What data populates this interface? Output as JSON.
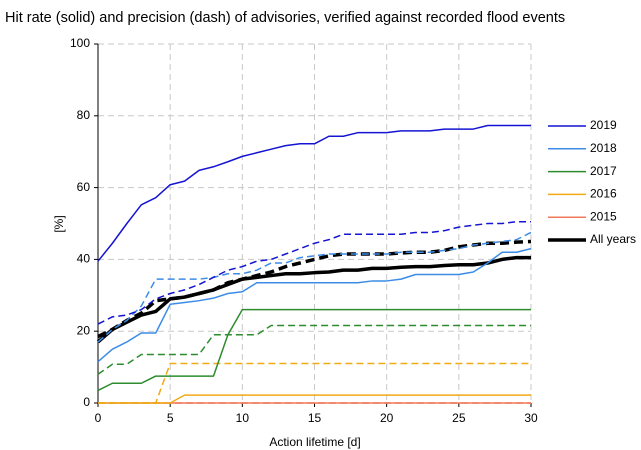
{
  "chart_data": {
    "type": "line",
    "title": "Hit rate (solid) and precision (dash) of advisories, verified against recorded flood events",
    "x_label": "Action lifetime [d]",
    "y_label": "[%]",
    "x": [
      0,
      1,
      2,
      3,
      4,
      5,
      6,
      7,
      8,
      9,
      10,
      11,
      12,
      13,
      14,
      15,
      16,
      17,
      18,
      19,
      20,
      21,
      22,
      23,
      24,
      25,
      26,
      27,
      28,
      29,
      30
    ],
    "series": [
      {
        "name": "2019",
        "color": "#1414d2",
        "values": [
          39.5,
          44.5,
          50,
          55.2,
          57.2,
          60.8,
          61.8,
          64.8,
          65.8,
          67.2,
          68.7,
          69.7,
          70.7,
          71.7,
          72.2,
          72.2,
          74.3,
          74.3,
          75.3,
          75.3,
          75.3,
          75.8,
          75.8,
          75.8,
          76.3,
          76.3,
          76.3,
          77.3,
          77.3,
          77.3,
          77.3
        ],
        "precision_values": [
          22,
          24,
          24.5,
          26,
          29,
          30.5,
          31.5,
          33,
          35,
          37,
          38,
          39.5,
          40,
          41.5,
          43,
          44.5,
          45.5,
          47,
          47,
          47,
          47,
          47,
          47.5,
          47.5,
          48,
          49,
          49.5,
          50,
          50,
          50.5,
          50.5
        ]
      },
      {
        "name": "2018",
        "color": "#3c8ce6",
        "values": [
          11.5,
          15,
          17,
          19.5,
          19.5,
          27.5,
          28,
          28.5,
          29.2,
          30.5,
          31,
          33.5,
          33.5,
          33.5,
          33.5,
          33.5,
          33.5,
          33.5,
          33.5,
          34,
          34,
          34.5,
          35.8,
          35.8,
          35.8,
          35.8,
          36.5,
          39,
          42,
          42,
          43
        ],
        "precision_values": [
          17,
          20.5,
          23,
          27,
          34.5,
          34.5,
          34.5,
          34.5,
          35,
          36,
          36,
          37,
          39,
          39,
          40.5,
          41,
          41.5,
          41.5,
          41.5,
          41.5,
          41.5,
          42,
          42,
          42,
          42.5,
          43,
          44,
          44.5,
          45,
          45.5,
          47.5
        ]
      },
      {
        "name": "2017",
        "color": "#2d8c2d",
        "values": [
          3.5,
          5.5,
          5.5,
          5.5,
          7.5,
          7.5,
          7.5,
          7.5,
          7.5,
          19,
          26,
          26,
          26,
          26,
          26,
          26,
          26,
          26,
          26,
          26,
          26,
          26,
          26,
          26,
          26,
          26,
          26,
          26,
          26,
          26,
          26
        ],
        "precision_values": [
          8,
          10.8,
          10.8,
          13.5,
          13.5,
          13.5,
          13.5,
          13.5,
          19,
          19,
          19,
          19,
          21.6,
          21.6,
          21.6,
          21.6,
          21.6,
          21.6,
          21.6,
          21.6,
          21.6,
          21.6,
          21.6,
          21.6,
          21.6,
          21.6,
          21.6,
          21.6,
          21.6,
          21.6,
          21.6
        ]
      },
      {
        "name": "2016",
        "color": "#f0aa14",
        "values": [
          0,
          0,
          0,
          0,
          0,
          0,
          2.2,
          2.2,
          2.2,
          2.2,
          2.2,
          2.2,
          2.2,
          2.2,
          2.2,
          2.2,
          2.2,
          2.2,
          2.2,
          2.2,
          2.2,
          2.2,
          2.2,
          2.2,
          2.2,
          2.2,
          2.2,
          2.2,
          2.2,
          2.2,
          2.2
        ],
        "precision_values": [
          0,
          0,
          0,
          0,
          0,
          11,
          11,
          11,
          11,
          11,
          11,
          11,
          11,
          11,
          11,
          11,
          11,
          11,
          11,
          11,
          11,
          11,
          11,
          11,
          11,
          11,
          11,
          11,
          11,
          11,
          11
        ]
      },
      {
        "name": "2015",
        "color": "#f0785a",
        "values": [
          0,
          0,
          0,
          0,
          0,
          0,
          0,
          0,
          0,
          0,
          0,
          0,
          0,
          0,
          0,
          0,
          0,
          0,
          0,
          0,
          0,
          0,
          0,
          0,
          0,
          0,
          0,
          0,
          0,
          0,
          0
        ],
        "precision_values": [
          0,
          0,
          0,
          0,
          0,
          0,
          0,
          0,
          0,
          0,
          0,
          0,
          0,
          0,
          0,
          0,
          0,
          0,
          0,
          0,
          0,
          0,
          0,
          0,
          0,
          0,
          0,
          0,
          0,
          0,
          0
        ]
      },
      {
        "name": "All years",
        "color": "#000000",
        "bold": true,
        "values": [
          17,
          20.5,
          22.5,
          24.5,
          25.5,
          29,
          29.5,
          30.5,
          31.5,
          33,
          34.5,
          35,
          35.5,
          36,
          36,
          36.3,
          36.5,
          37,
          37,
          37.5,
          37.5,
          37.8,
          38,
          38,
          38.3,
          38.5,
          38.5,
          39,
          40,
          40.5,
          40.5
        ],
        "precision_values": [
          18.5,
          20.5,
          23,
          25,
          28.5,
          29,
          29.5,
          30.5,
          31.5,
          33.5,
          34.5,
          35.5,
          36.5,
          38,
          39,
          40,
          41,
          41.5,
          41.5,
          41.5,
          41.5,
          41.8,
          42,
          42,
          42.5,
          43.5,
          44,
          44.5,
          44.5,
          44.8,
          45
        ]
      }
    ],
    "xlim": [
      0,
      30
    ],
    "xticks": [
      0,
      5,
      10,
      15,
      20,
      25,
      30
    ],
    "ylim": [
      0,
      100
    ],
    "yticks": [
      0,
      20,
      40,
      60,
      80,
      100
    ],
    "grid": true,
    "legend": "right"
  }
}
